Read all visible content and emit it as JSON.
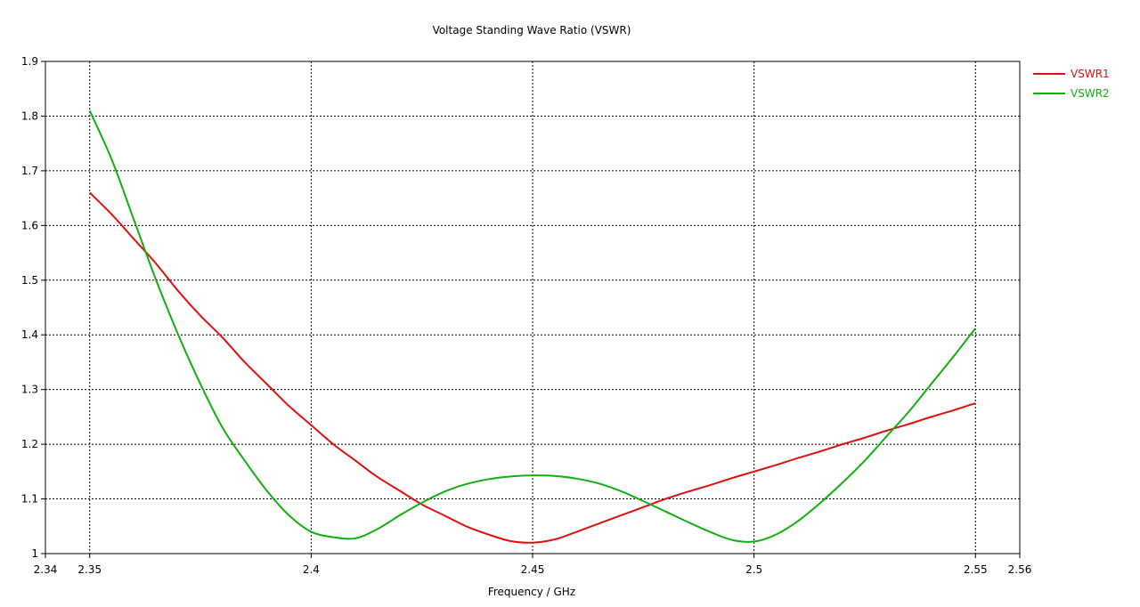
{
  "chart_data": {
    "type": "line",
    "title": "Voltage Standing Wave Ratio (VSWR)",
    "xlabel": "Frequency / GHz",
    "ylabel": "",
    "xlim": [
      2.34,
      2.56
    ],
    "ylim": [
      1,
      1.9
    ],
    "x_ticks": [
      "2.34",
      "2.35",
      "2.4",
      "2.45",
      "2.5",
      "2.55",
      "2.56"
    ],
    "y_ticks": [
      "1",
      "1.1",
      "1.2",
      "1.3",
      "1.4",
      "1.5",
      "1.6",
      "1.7",
      "1.8",
      "1.9"
    ],
    "grid": true,
    "legend_position": "top-right-outside",
    "series": [
      {
        "name": "VSWR1",
        "color": "#e01010",
        "x": [
          2.35,
          2.355,
          2.36,
          2.365,
          2.37,
          2.375,
          2.38,
          2.385,
          2.39,
          2.395,
          2.4,
          2.405,
          2.41,
          2.415,
          2.42,
          2.425,
          2.43,
          2.435,
          2.44,
          2.445,
          2.45,
          2.455,
          2.46,
          2.465,
          2.47,
          2.475,
          2.48,
          2.485,
          2.49,
          2.495,
          2.5,
          2.505,
          2.51,
          2.515,
          2.52,
          2.525,
          2.53,
          2.535,
          2.54,
          2.545,
          2.55
        ],
        "y": [
          1.66,
          1.62,
          1.575,
          1.53,
          1.48,
          1.435,
          1.395,
          1.35,
          1.31,
          1.27,
          1.235,
          1.2,
          1.17,
          1.14,
          1.115,
          1.09,
          1.07,
          1.05,
          1.035,
          1.023,
          1.02,
          1.026,
          1.04,
          1.055,
          1.07,
          1.085,
          1.1,
          1.113,
          1.125,
          1.138,
          1.15,
          1.162,
          1.175,
          1.187,
          1.2,
          1.212,
          1.225,
          1.237,
          1.25,
          1.262,
          1.275
        ]
      },
      {
        "name": "VSWR2",
        "color": "#10b010",
        "x": [
          2.35,
          2.355,
          2.36,
          2.365,
          2.37,
          2.375,
          2.38,
          2.385,
          2.39,
          2.395,
          2.4,
          2.405,
          2.41,
          2.415,
          2.42,
          2.425,
          2.43,
          2.435,
          2.44,
          2.445,
          2.45,
          2.455,
          2.46,
          2.465,
          2.47,
          2.475,
          2.48,
          2.485,
          2.49,
          2.495,
          2.5,
          2.505,
          2.51,
          2.515,
          2.52,
          2.525,
          2.53,
          2.535,
          2.54,
          2.545,
          2.55
        ],
        "y": [
          1.81,
          1.72,
          1.61,
          1.5,
          1.4,
          1.31,
          1.23,
          1.17,
          1.115,
          1.07,
          1.04,
          1.03,
          1.028,
          1.045,
          1.07,
          1.093,
          1.113,
          1.127,
          1.136,
          1.141,
          1.143,
          1.142,
          1.137,
          1.128,
          1.114,
          1.096,
          1.077,
          1.058,
          1.04,
          1.025,
          1.022,
          1.035,
          1.06,
          1.093,
          1.13,
          1.17,
          1.215,
          1.26,
          1.31,
          1.36,
          1.412
        ]
      }
    ]
  }
}
